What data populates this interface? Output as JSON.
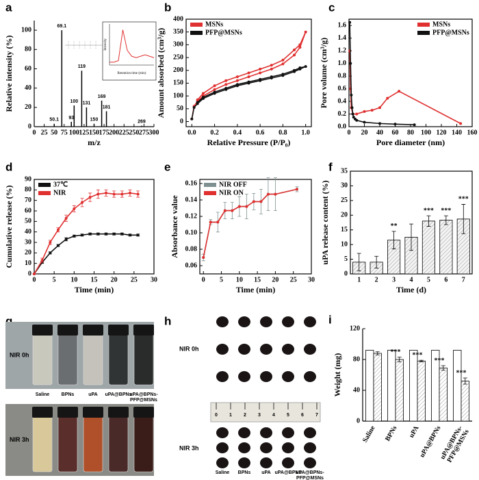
{
  "chart_data": [
    {
      "type": "stem",
      "label": "a",
      "xlabel": "m/z",
      "ylabel": "Relative intensity (%)",
      "xlim": [
        0,
        300
      ],
      "xticks": [
        0,
        25,
        50,
        75,
        100,
        125,
        150,
        175,
        200,
        225,
        250,
        275,
        300
      ],
      "ylim": [
        0,
        110
      ],
      "yticks": [
        0,
        20,
        40,
        60,
        80,
        100
      ],
      "color": "#000000",
      "x": [
        50.1,
        69.1,
        93,
        100,
        119,
        131,
        150,
        169,
        181,
        269
      ],
      "values": [
        3,
        100,
        5,
        22,
        58,
        20,
        3,
        27,
        16,
        1
      ],
      "inset": {
        "xlabel": "Retention time (min)",
        "ylabel": "Intensity",
        "ylim": [
          0,
          1.4
        ],
        "color": "#e03030",
        "values": [
          0.1,
          0.1,
          0.15,
          1.2,
          0.5,
          0.3,
          0.25,
          0.3,
          0.35,
          0.3,
          0.25
        ]
      }
    },
    {
      "type": "line",
      "label": "b",
      "xlabel": "Relative Pressure (P/P₀)",
      "ylabel": "Amount absorbed (cm³/g)",
      "xlim": [
        -0.05,
        1.05
      ],
      "xticks": [
        {
          "value": 0,
          "label": "0.0"
        },
        0.2,
        0.4,
        0.6,
        0.8,
        {
          "value": 1,
          "label": "1.0"
        }
      ],
      "ylim": [
        -20,
        400
      ],
      "yticks": [
        0,
        50,
        100,
        150,
        200,
        250,
        300,
        350,
        400
      ],
      "legend": "upper left",
      "x": [
        0,
        0.02,
        0.05,
        0.1,
        0.2,
        0.3,
        0.4,
        0.5,
        0.6,
        0.7,
        0.8,
        0.9,
        0.95,
        1.0,
        0.95,
        0.9,
        0.8,
        0.7,
        0.6,
        0.5,
        0.4,
        0.3,
        0.2,
        0.1,
        0.05
      ],
      "series": [
        {
          "name": "MSNs",
          "color": "#e03030",
          "values": [
            10,
            60,
            80,
            100,
            125,
            145,
            160,
            175,
            190,
            205,
            225,
            260,
            290,
            350,
            300,
            280,
            240,
            220,
            205,
            190,
            175,
            160,
            140,
            110,
            85
          ]
        },
        {
          "name": "PFP@MSNs",
          "color": "#111111",
          "values": [
            10,
            55,
            70,
            90,
            110,
            125,
            140,
            150,
            160,
            170,
            180,
            195,
            205,
            215,
            210,
            200,
            185,
            175,
            165,
            155,
            145,
            130,
            115,
            95,
            75
          ]
        }
      ]
    },
    {
      "type": "line",
      "label": "c",
      "xlabel": "Pore diameter (nm)",
      "ylabel": "Pore volume (cm³/g)",
      "xlim": [
        0,
        160
      ],
      "xticks": [
        0,
        20,
        40,
        60,
        80,
        100,
        120,
        140,
        160
      ],
      "ylim": [
        0,
        1.7
      ],
      "yticks": [
        {
          "value": 0,
          "label": "0.0"
        },
        0.2,
        0.4,
        0.6,
        0.8,
        {
          "value": 1,
          "label": "1.0"
        },
        1.2,
        1.4,
        1.6
      ],
      "legend": "upper right",
      "series": [
        {
          "name": "MSNs",
          "color": "#e03030",
          "x": [
            1,
            2,
            3,
            5,
            10,
            20,
            30,
            40,
            50,
            65,
            145
          ],
          "values": [
            1.2,
            0.6,
            0.3,
            0.2,
            0.2,
            0.24,
            0.26,
            0.3,
            0.45,
            0.56,
            0.05
          ]
        },
        {
          "name": "PFP@MSNs",
          "color": "#111111",
          "x": [
            1,
            2,
            3,
            4,
            5,
            6,
            8,
            10,
            20,
            40,
            60,
            85
          ],
          "values": [
            1.65,
            1.0,
            0.5,
            0.3,
            0.2,
            0.15,
            0.12,
            0.1,
            0.07,
            0.05,
            0.04,
            0.03
          ]
        }
      ]
    },
    {
      "type": "line",
      "label": "d",
      "xlabel": "Time (min)",
      "ylabel": "Cumulative release (%)",
      "xlim": [
        0,
        30
      ],
      "xticks": [
        0,
        5,
        10,
        15,
        20,
        25,
        30
      ],
      "ylim": [
        0,
        90
      ],
      "yticks": [
        0,
        10,
        20,
        30,
        40,
        50,
        60,
        70,
        80,
        90
      ],
      "legend": "upper left",
      "x": [
        0,
        2,
        4,
        6,
        8,
        10,
        12,
        14,
        16,
        18,
        20,
        22,
        24,
        26
      ],
      "series": [
        {
          "name": "37℃",
          "color": "#111111",
          "values": [
            0,
            11,
            20,
            27,
            33,
            36,
            37,
            38,
            38,
            38,
            38,
            38,
            37,
            37
          ],
          "errors": [
            0,
            1,
            1,
            1,
            1.5,
            1,
            1,
            1,
            1,
            1,
            1,
            1,
            1,
            1
          ]
        },
        {
          "name": "NIR",
          "color": "#e03030",
          "values": [
            0,
            13,
            30,
            42,
            53,
            62,
            68,
            73,
            76,
            77,
            76,
            76,
            77,
            76
          ],
          "errors": [
            0,
            2,
            2,
            2,
            3,
            3,
            4,
            4,
            4,
            3,
            3,
            3,
            3,
            3
          ]
        }
      ]
    },
    {
      "type": "line",
      "label": "e",
      "xlabel": "Time (min)",
      "ylabel": "Absorbance value",
      "xlim": [
        -1,
        30
      ],
      "xticks": [
        0,
        5,
        10,
        15,
        20,
        25,
        30
      ],
      "ylim": [
        0.05,
        0.165
      ],
      "yticks": [
        0.06,
        0.08,
        {
          "value": 0.1,
          "label": "0.10"
        },
        0.12,
        0.14,
        0.16
      ],
      "legend": "upper left",
      "x": [
        0,
        2,
        4,
        6,
        8,
        10,
        12,
        14,
        16,
        18,
        20,
        26
      ],
      "series": [
        {
          "name": "NIR OFF",
          "color": "#7f9090",
          "values": [
            0.07,
            0.113,
            0.113,
            0.127,
            0.127,
            0.132,
            0.132,
            0.138,
            0.138,
            0.147,
            0.147,
            0.153
          ],
          "errors": [
            0.004,
            0.003,
            0.012,
            0.01,
            0.01,
            0.012,
            0.015,
            0.01,
            0.015,
            0.02,
            0.02,
            0.003
          ]
        },
        {
          "name": "NIR ON",
          "color": "#e03030",
          "values": [
            0.07,
            0.113,
            0.113,
            0.127,
            0.127,
            0.132,
            0.132,
            0.138,
            0.138,
            0.147,
            0.147,
            0.153
          ]
        }
      ]
    },
    {
      "type": "bar",
      "label": "f",
      "xlabel": "Time (d)",
      "ylabel": "uPA release content (%)",
      "ylim": [
        0,
        35
      ],
      "yticks": [
        0,
        5,
        10,
        15,
        20,
        25,
        30,
        35
      ],
      "categories": [
        "1",
        "2",
        "3",
        "4",
        "5",
        "6",
        "7"
      ],
      "series": [
        {
          "color": "#f4f4f4",
          "hatch": true,
          "values": [
            4,
            4,
            11.5,
            12.5,
            18,
            18.3,
            18.7
          ],
          "errors": [
            3,
            2,
            3,
            4.5,
            1.8,
            1.5,
            5
          ]
        }
      ],
      "significance": [
        null,
        null,
        "**",
        null,
        "***",
        "***",
        "***"
      ]
    },
    {
      "type": "bar",
      "label": "i",
      "ylabel": "Weight (mg)",
      "ylim": [
        0,
        120
      ],
      "yticks": [
        0,
        40,
        80,
        120
      ],
      "categories": [
        "Saline",
        "BPNs",
        "uPA",
        "uPA@BPNs",
        "uPA@BPNs-PFP@MSNs"
      ],
      "series": [
        {
          "color": "#ffffff",
          "values": [
            92,
            92,
            92,
            92,
            92
          ]
        },
        {
          "color": "#ffffff",
          "hatch": true,
          "values": [
            88,
            80,
            78,
            69,
            52
          ],
          "errors": [
            2,
            3,
            1,
            3,
            4
          ]
        }
      ],
      "significance": [
        null,
        "***",
        "***",
        "***",
        "***"
      ]
    }
  ],
  "photos": [
    {
      "label": "g",
      "rows": [
        "NIR 0h",
        "NIR 3h"
      ],
      "samples": [
        "Saline",
        "BPNs",
        "uPA",
        "uPA@BPNs",
        "uPA@BPNs-PFP@MSNs"
      ]
    },
    {
      "label": "h",
      "rows": [
        "NIR 0h",
        "NIR 3h"
      ],
      "samples": [
        "Saline",
        "BPNs",
        "uPA",
        "uPA@BPNs",
        "uPA@BPNs-PFP@MSNs"
      ],
      "ruler": [
        "0",
        "1",
        "2",
        "3",
        "4",
        "5",
        "6",
        "7"
      ]
    }
  ]
}
